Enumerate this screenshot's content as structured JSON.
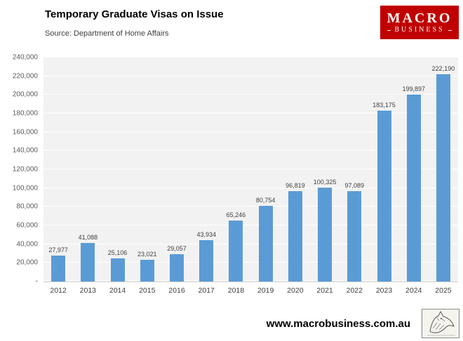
{
  "header": {
    "title": "Temporary Graduate Visas on Issue",
    "source": "Source: Department of Home Affairs",
    "logo_line1": "MACRO",
    "logo_line2": "BUSINESS",
    "logo_color": "#c00000"
  },
  "chart_data": {
    "type": "bar",
    "title": "Temporary Graduate Visas on Issue",
    "subtitle": "Source: Department of Home Affairs",
    "categories": [
      "2012",
      "2013",
      "2014",
      "2015",
      "2016",
      "2017",
      "2018",
      "2019",
      "2020",
      "2021",
      "2022",
      "2023",
      "2024",
      "2025"
    ],
    "values": [
      27977,
      41088,
      25106,
      23021,
      29057,
      43934,
      65246,
      80754,
      96819,
      100325,
      97089,
      183175,
      199897,
      222190
    ],
    "data_labels": [
      "27,977",
      "41,088",
      "25,106",
      "23,021",
      "29,057",
      "43,934",
      "65,246",
      "80,754",
      "96,819",
      "100,325",
      "97,089",
      "183,175",
      "199,897",
      "222,190"
    ],
    "xlabel": "",
    "ylabel": "",
    "ylim": [
      0,
      240000
    ],
    "ytick_step": 20000,
    "ytick_labels": [
      "-",
      "20,000",
      "40,000",
      "60,000",
      "80,000",
      "100,000",
      "120,000",
      "140,000",
      "160,000",
      "180,000",
      "200,000",
      "220,000",
      "240,000"
    ],
    "bar_color": "#5b9bd5",
    "plot_background": "#f2f2f2",
    "gridline_color": "#ffffff",
    "grid": "horizontal",
    "legend": "none"
  },
  "footer": {
    "url": "www.macrobusiness.com.au"
  }
}
